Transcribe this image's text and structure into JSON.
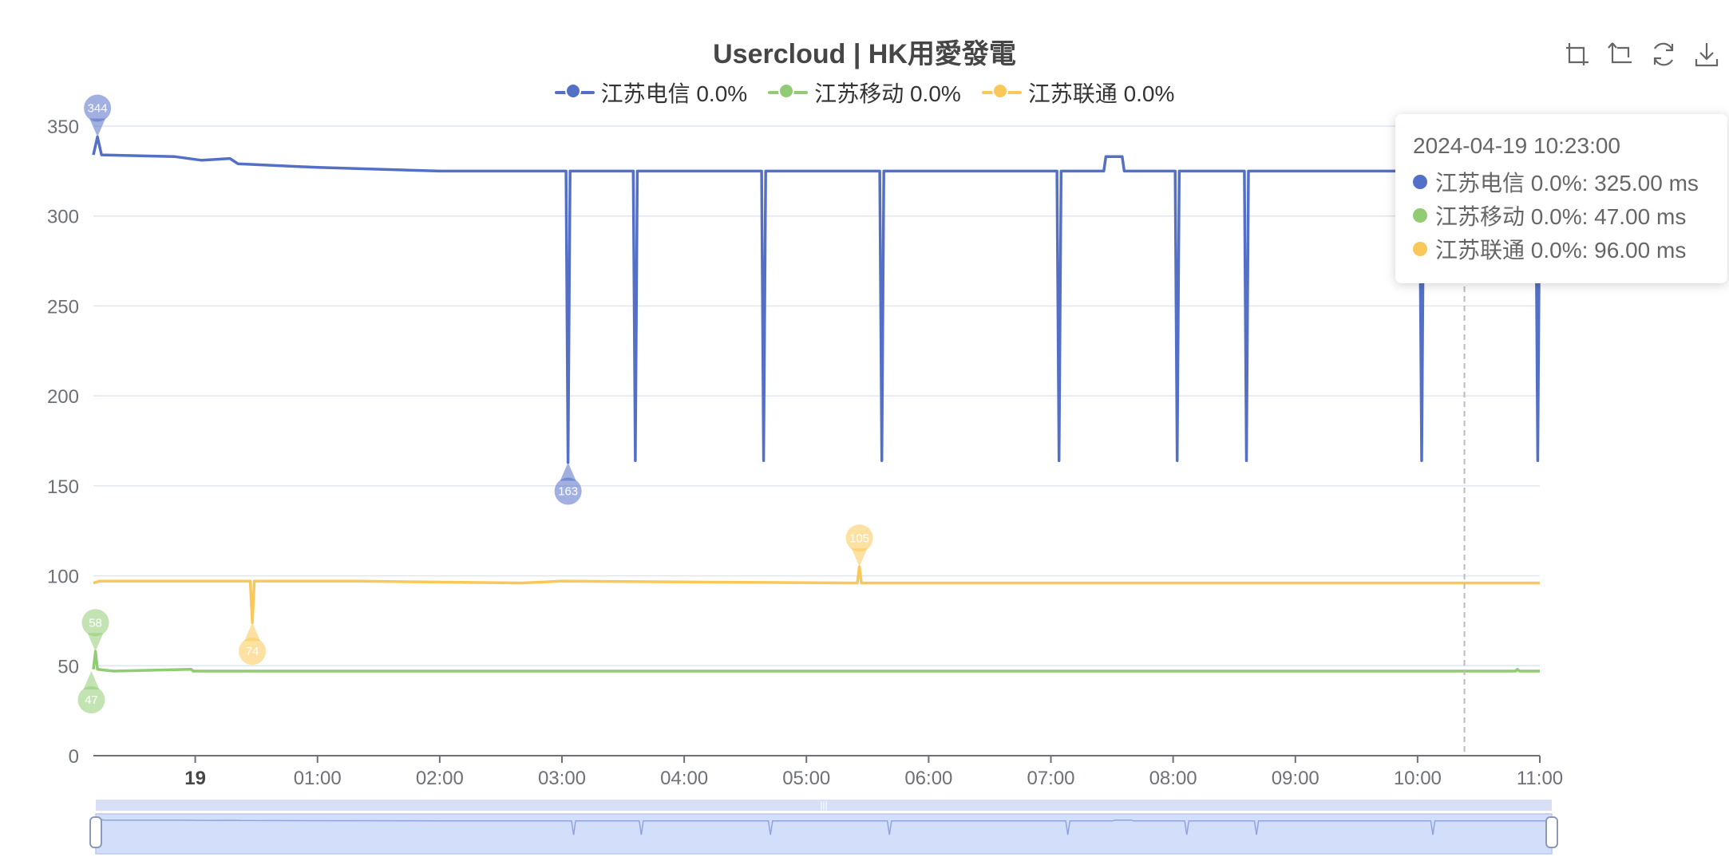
{
  "colors": {
    "telecom": "#5470c6",
    "mobile": "#91cc75",
    "unicom": "#fac858"
  },
  "toolbox": [
    {
      "name": "zoom-icon"
    },
    {
      "name": "zoom-reset-icon"
    },
    {
      "name": "restore-icon"
    },
    {
      "name": "download-icon"
    }
  ],
  "tooltip": {
    "time": "2024-04-19 10:23:00",
    "rows": [
      {
        "text": "江苏电信 0.0%: 325.00 ms",
        "color": "#5470c6"
      },
      {
        "text": "江苏移动 0.0%: 47.00 ms",
        "color": "#91cc75"
      },
      {
        "text": "江苏联通 0.0%: 96.00 ms",
        "color": "#fac858"
      }
    ]
  },
  "chart_data": {
    "type": "line",
    "title": "Usercloud | HK用愛發電",
    "legend_position": "top",
    "grid": true,
    "ylim": [
      0,
      350
    ],
    "yticks": [
      0,
      50,
      100,
      150,
      200,
      250,
      300,
      350
    ],
    "x_range": [
      "2024-04-18 23:10",
      "2024-04-19 11:00"
    ],
    "xticks": [
      {
        "time": "2024-04-19 00:00",
        "label": "19",
        "bold": true
      },
      {
        "time": "2024-04-19 01:00",
        "label": "01:00"
      },
      {
        "time": "2024-04-19 02:00",
        "label": "02:00"
      },
      {
        "time": "2024-04-19 03:00",
        "label": "03:00"
      },
      {
        "time": "2024-04-19 04:00",
        "label": "04:00"
      },
      {
        "time": "2024-04-19 05:00",
        "label": "05:00"
      },
      {
        "time": "2024-04-19 06:00",
        "label": "06:00"
      },
      {
        "time": "2024-04-19 07:00",
        "label": "07:00"
      },
      {
        "time": "2024-04-19 08:00",
        "label": "08:00"
      },
      {
        "time": "2024-04-19 09:00",
        "label": "09:00"
      },
      {
        "time": "2024-04-19 10:00",
        "label": "10:00"
      },
      {
        "time": "2024-04-19 11:00",
        "label": "11:00"
      }
    ],
    "cursor_time": "2024-04-19 10:23",
    "series": [
      {
        "name": "江苏电信 0.0%",
        "color": "#5470c6",
        "points": [
          [
            "2024-04-18 23:10",
            334
          ],
          [
            "2024-04-18 23:12",
            344
          ],
          [
            "2024-04-18 23:14",
            334
          ],
          [
            "2024-04-18 23:50",
            333
          ],
          [
            "2024-04-19 00:03",
            331
          ],
          [
            "2024-04-19 00:17",
            332
          ],
          [
            "2024-04-19 00:21",
            329
          ],
          [
            "2024-04-19 01:00",
            327
          ],
          [
            "2024-04-19 02:00",
            325
          ],
          [
            "2024-04-19 03:02",
            325
          ],
          [
            "2024-04-19 03:03",
            163
          ],
          [
            "2024-04-19 03:04",
            325
          ],
          [
            "2024-04-19 03:35",
            325
          ],
          [
            "2024-04-19 03:36",
            164
          ],
          [
            "2024-04-19 03:37",
            325
          ],
          [
            "2024-04-19 04:38",
            325
          ],
          [
            "2024-04-19 04:39",
            164
          ],
          [
            "2024-04-19 04:40",
            325
          ],
          [
            "2024-04-19 05:36",
            325
          ],
          [
            "2024-04-19 05:37",
            164
          ],
          [
            "2024-04-19 05:38",
            325
          ],
          [
            "2024-04-19 07:03",
            325
          ],
          [
            "2024-04-19 07:04",
            164
          ],
          [
            "2024-04-19 07:05",
            325
          ],
          [
            "2024-04-19 07:26",
            325
          ],
          [
            "2024-04-19 07:27",
            333
          ],
          [
            "2024-04-19 07:35",
            333
          ],
          [
            "2024-04-19 07:36",
            325
          ],
          [
            "2024-04-19 08:01",
            325
          ],
          [
            "2024-04-19 08:02",
            164
          ],
          [
            "2024-04-19 08:03",
            325
          ],
          [
            "2024-04-19 08:35",
            325
          ],
          [
            "2024-04-19 08:36",
            164
          ],
          [
            "2024-04-19 08:37",
            325
          ],
          [
            "2024-04-19 10:01",
            325
          ],
          [
            "2024-04-19 10:02",
            164
          ],
          [
            "2024-04-19 10:03",
            325
          ],
          [
            "2024-04-19 10:58",
            325
          ],
          [
            "2024-04-19 10:59",
            164
          ],
          [
            "2024-04-19 11:00",
            325
          ]
        ],
        "markers": [
          {
            "label": "344",
            "time": "2024-04-18 23:12",
            "value": 344,
            "kind": "max"
          },
          {
            "label": "163",
            "time": "2024-04-19 03:03",
            "value": 163,
            "kind": "min"
          }
        ]
      },
      {
        "name": "江苏移动 0.0%",
        "color": "#91cc75",
        "points": [
          [
            "2024-04-18 23:10",
            48
          ],
          [
            "2024-04-18 23:11",
            58
          ],
          [
            "2024-04-18 23:12",
            48
          ],
          [
            "2024-04-18 23:20",
            47
          ],
          [
            "2024-04-18 23:58",
            48
          ],
          [
            "2024-04-18 23:59",
            47
          ],
          [
            "2024-04-19 03:00",
            47
          ],
          [
            "2024-04-19 06:00",
            47
          ],
          [
            "2024-04-19 10:48",
            47
          ],
          [
            "2024-04-19 10:49",
            48
          ],
          [
            "2024-04-19 10:50",
            47
          ],
          [
            "2024-04-19 11:00",
            47
          ]
        ],
        "markers": [
          {
            "label": "58",
            "time": "2024-04-18 23:11",
            "value": 58,
            "kind": "max"
          },
          {
            "label": "47",
            "time": "2024-04-18 23:09",
            "value": 47,
            "kind": "min"
          }
        ]
      },
      {
        "name": "江苏联通 0.0%",
        "color": "#fac858",
        "points": [
          [
            "2024-04-18 23:10",
            96
          ],
          [
            "2024-04-18 23:13",
            97
          ],
          [
            "2024-04-19 00:27",
            97
          ],
          [
            "2024-04-19 00:28",
            74
          ],
          [
            "2024-04-19 00:29",
            97
          ],
          [
            "2024-04-19 01:20",
            97
          ],
          [
            "2024-04-19 02:40",
            96
          ],
          [
            "2024-04-19 03:00",
            97
          ],
          [
            "2024-04-19 05:25",
            96
          ],
          [
            "2024-04-19 05:26",
            105
          ],
          [
            "2024-04-19 05:27",
            96
          ],
          [
            "2024-04-19 08:00",
            96
          ],
          [
            "2024-04-19 11:00",
            96
          ]
        ],
        "markers": [
          {
            "label": "105",
            "time": "2024-04-19 05:26",
            "value": 105,
            "kind": "max"
          },
          {
            "label": "74",
            "time": "2024-04-19 00:28",
            "value": 74,
            "kind": "min"
          }
        ]
      }
    ],
    "data_zoom": {
      "start": 0,
      "end": 1
    }
  }
}
